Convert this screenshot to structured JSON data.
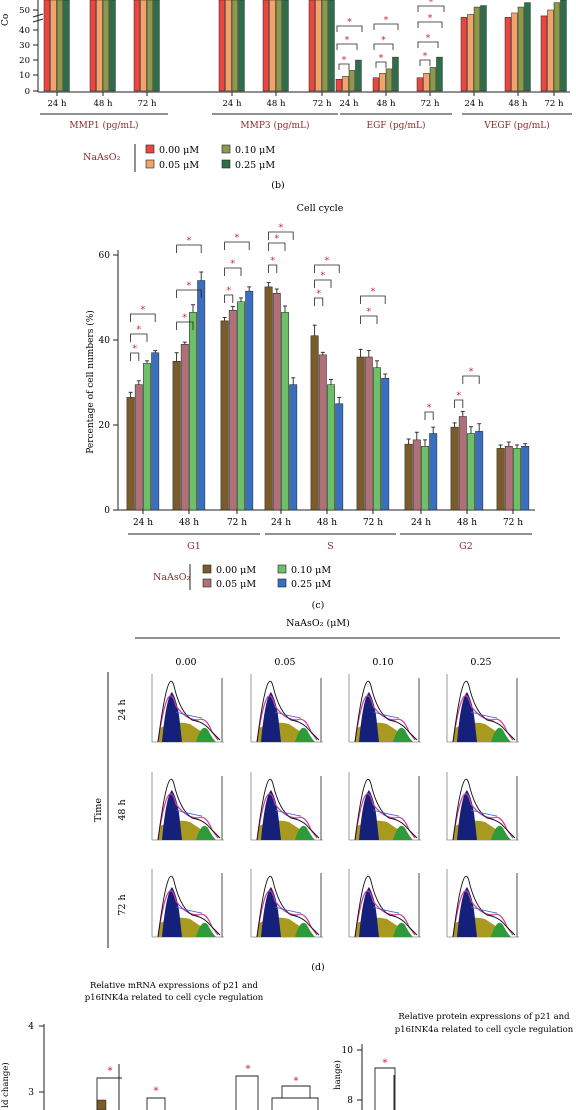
{
  "panel_b": {
    "ylabel_fragment": "Co",
    "ticks": [
      "50",
      "40",
      "30",
      "20",
      "10",
      "0"
    ],
    "time_labels": [
      "24 h",
      "48 h",
      "72 h"
    ],
    "group_labels": [
      "MMP1 (pg/mL)",
      "MMP3 (pg/mL)",
      "EGF (pg/mL)",
      "VEGF (pg/mL)"
    ],
    "legend_title": "NaAsO₂",
    "legend": [
      "0.00 μM",
      "0.05 μM",
      "0.10 μM",
      "0.25 μM"
    ],
    "colors": [
      "#e8463f",
      "#f3a36a",
      "#8b9a4a",
      "#2f6e4a"
    ],
    "caption": "(b)",
    "sig_mark": "*"
  },
  "panel_c": {
    "caption": "(c)",
    "legend_title": "NaAsO₂",
    "legend": [
      "0.00 μM",
      "0.05 μM",
      "0.10 μM",
      "0.25 μM"
    ],
    "colors": [
      "#7a5c2a",
      "#b07078",
      "#6fbf6a",
      "#3a6fbf"
    ],
    "sig_mark": "*"
  },
  "chart_data": {
    "type": "bar",
    "title": "Cell cycle",
    "xlabel": "",
    "ylabel": "Percentage of cell numbers (%)",
    "ylim": [
      0,
      60
    ],
    "yticks": [
      0,
      20,
      40,
      60
    ],
    "phases": [
      "G1",
      "S",
      "G2"
    ],
    "time_labels": [
      "24 h",
      "48 h",
      "72 h"
    ],
    "series": [
      {
        "name": "0.00 μM",
        "values": [
          26.5,
          35,
          44.5,
          52.5,
          41,
          36,
          15.5,
          19.5,
          14.5
        ]
      },
      {
        "name": "0.05 μM",
        "values": [
          29.5,
          39,
          47,
          51,
          36.5,
          36,
          16.5,
          22,
          15
        ]
      },
      {
        "name": "0.10 μM",
        "values": [
          34.5,
          46.5,
          49,
          46.5,
          29.5,
          33.5,
          15,
          18,
          14.5
        ]
      },
      {
        "name": "0.25 μM",
        "values": [
          37,
          54,
          51.5,
          29.5,
          25,
          31,
          18,
          18.5,
          15
        ]
      }
    ],
    "errors": [
      [
        1.2,
        2.0,
        0.8,
        1.0,
        2.5,
        1.8,
        1.2,
        1.0,
        0.8
      ],
      [
        0.9,
        0.5,
        0.9,
        1.0,
        0.6,
        1.5,
        1.8,
        1.2,
        1.0
      ],
      [
        0.6,
        1.8,
        0.9,
        1.5,
        1.2,
        1.6,
        1.5,
        1.6,
        0.8
      ],
      [
        0.5,
        2.0,
        1.0,
        1.6,
        1.5,
        1.0,
        1.5,
        1.8,
        0.6
      ]
    ]
  },
  "panel_d": {
    "title": "NaAsO₂ (μM)",
    "columns": [
      "0.00",
      "0.05",
      "0.10",
      "0.25"
    ],
    "rows": [
      "24 h",
      "48 h",
      "72 h"
    ],
    "row_axis": "Time",
    "caption": "(d)"
  },
  "panel_e": {
    "mrna_title_line1": "Relative mRNA expressions of p21 and",
    "mrna_title_line2": "p16INK4a related to cell cycle regulation",
    "protein_title_line1": "Relative protein expressions of p21 and",
    "protein_title_line2": "p16INK4a related to cell cycle regulation",
    "mrna_ticks": [
      "4",
      "3"
    ],
    "protein_ticks": [
      "10",
      "8"
    ],
    "mrna_ylabel_fragment": "ld change)",
    "protein_ylabel_fragment": "hange)",
    "sig_mark": "*"
  }
}
